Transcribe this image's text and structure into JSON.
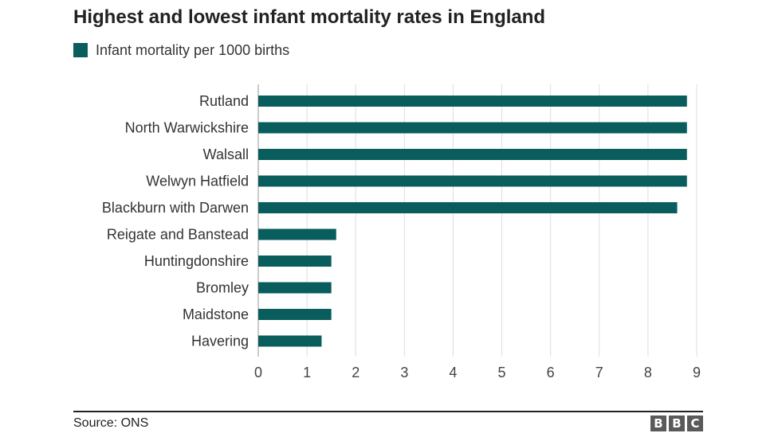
{
  "chart_data": {
    "type": "bar",
    "orientation": "horizontal",
    "title": "Highest and lowest infant mortality rates in England",
    "categories": [
      "Rutland",
      "North Warwickshire",
      "Walsall",
      "Welwyn Hatfield",
      "Blackburn with Darwen",
      "Reigate and Banstead",
      "Huntingdonshire",
      "Bromley",
      "Maidstone",
      "Havering"
    ],
    "series": [
      {
        "name": "Infant mortality per 1000 births",
        "values": [
          8.8,
          8.8,
          8.8,
          8.8,
          8.6,
          1.6,
          1.5,
          1.5,
          1.5,
          1.3
        ],
        "color": "#0a5d5d"
      }
    ],
    "xlim": [
      0,
      9
    ],
    "xticks": [
      0,
      1,
      2,
      3,
      4,
      5,
      6,
      7,
      8,
      9
    ],
    "grid": true,
    "legend": "top-left"
  },
  "footer": {
    "source": "Source: ONS",
    "logo_letters": [
      "B",
      "B",
      "C"
    ]
  }
}
